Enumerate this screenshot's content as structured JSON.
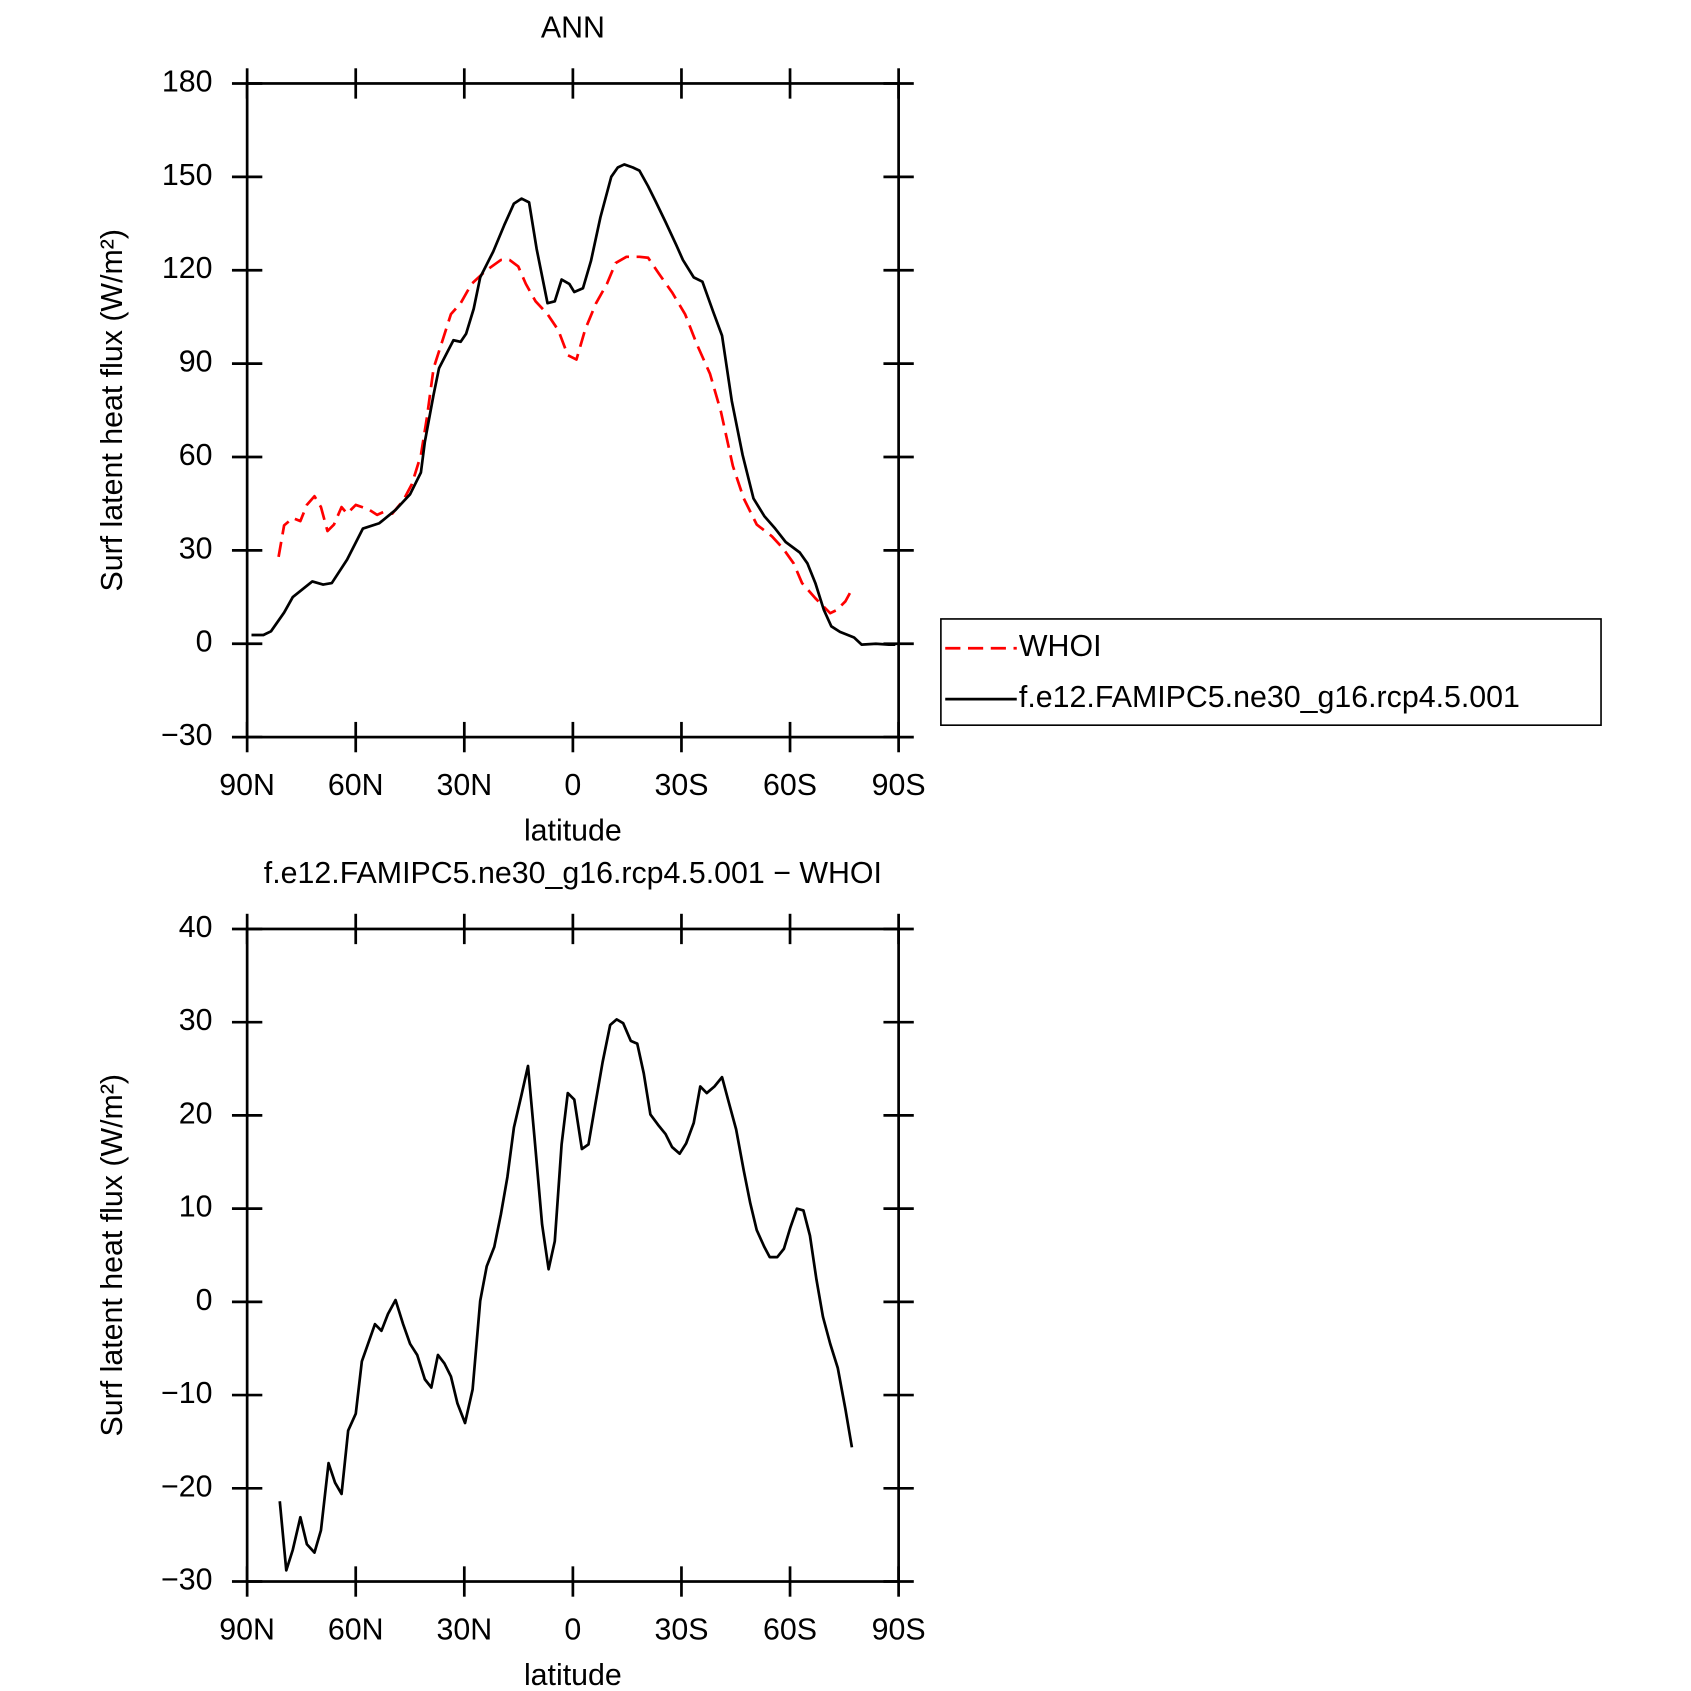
{
  "chart_data": [
    {
      "type": "line",
      "title": "ANN",
      "xlabel": "latitude",
      "ylabel": "Surf latent heat flux (W/m²)",
      "xlim": [
        90,
        -90
      ],
      "xticks": [
        {
          "value": 90,
          "label": "90N"
        },
        {
          "value": 60,
          "label": "60N"
        },
        {
          "value": 30,
          "label": "30N"
        },
        0,
        {
          "value": -30,
          "label": "30S"
        },
        {
          "value": -60,
          "label": "60S"
        },
        {
          "value": -90,
          "label": "90S"
        }
      ],
      "ylim": [
        -30,
        180
      ],
      "yticks": [
        {
          "value": -30,
          "label": "−30"
        },
        0,
        30,
        60,
        90,
        120,
        150,
        180
      ],
      "legend": "right",
      "series": [
        {
          "name": "WHOI",
          "color": "#ff0000",
          "dashed": true,
          "x": [
            81.3,
            79.8,
            77.4,
            75.3,
            73.5,
            71.4,
            69.6,
            67.8,
            66,
            63.9,
            62.4,
            60,
            56.5,
            54.1,
            52,
            49.9,
            46.9,
            44.5,
            42,
            40.3,
            38.5,
            36.1,
            33.7,
            31,
            28,
            24.1,
            19.9,
            17.5,
            15.1,
            13,
            10.3,
            7,
            4,
            1.4,
            -1,
            -3.4,
            -6.4,
            -9.4,
            -11.8,
            -14.8,
            -18.4,
            -20.8,
            -23.8,
            -27.4,
            -31,
            -34.3,
            -37.9,
            -40.9,
            -44.2,
            -47.2,
            -50.8,
            -55,
            -58,
            -61,
            -63.3,
            -67,
            -71.1,
            -72.9,
            -75.3,
            -77.4
          ],
          "values": [
            27.9,
            38,
            40.4,
            39.4,
            44.6,
            47.4,
            43.9,
            36.2,
            38.3,
            43.9,
            41.8,
            44.6,
            43.2,
            41.4,
            42.5,
            41.8,
            46,
            51.2,
            60.6,
            72.8,
            88.5,
            97.2,
            105.9,
            109.4,
            115.6,
            119.8,
            123.3,
            123.3,
            121.2,
            115.6,
            110,
            105.9,
            100.7,
            92.7,
            91.3,
            101,
            109.4,
            115.6,
            122.3,
            124.3,
            124.3,
            124,
            118.8,
            112.9,
            105.9,
            96.1,
            86.7,
            74.5,
            57.1,
            46.7,
            38.3,
            34.5,
            30.7,
            25.8,
            19.5,
            14.6,
            9.8,
            10.8,
            13.6,
            18.1
          ]
        },
        {
          "name": "f.e12.FAMIPC5.ne30_g16.rcp4.5.001",
          "color": "#000000",
          "dashed": false,
          "x": [
            88.8,
            85.5,
            83.4,
            79.8,
            77.4,
            72,
            69,
            66.6,
            62.4,
            58,
            53.5,
            49,
            45,
            42,
            40.9,
            38.5,
            37,
            33,
            31,
            29.5,
            27.4,
            25.6,
            22,
            19,
            16.3,
            14.2,
            12.1,
            10,
            7,
            5,
            3.1,
            1,
            -0.4,
            -2.8,
            -5,
            -7.6,
            -10.6,
            -12.4,
            -14.2,
            -16.6,
            -18.4,
            -20.8,
            -22.9,
            -25.6,
            -28.6,
            -30.4,
            -33.4,
            -35.8,
            -38.8,
            -41.2,
            -43.9,
            -46.9,
            -49.9,
            -52.9,
            -55.9,
            -58.8,
            -62.7,
            -64.8,
            -67,
            -69.3,
            -71.4,
            -73.8,
            -77.7,
            -79.8,
            -83.7,
            -87.3,
            -89.1
          ],
          "values": [
            2.8,
            2.8,
            4,
            10,
            15,
            20,
            19,
            19.5,
            27,
            37,
            38.7,
            43,
            48,
            55,
            64.8,
            80,
            88.5,
            97.5,
            97,
            99.6,
            107.6,
            117.7,
            126,
            134.4,
            141.4,
            143,
            141.8,
            126.8,
            109.4,
            110,
            117,
            115.6,
            113,
            114.2,
            123,
            137,
            150,
            153,
            154,
            153,
            152,
            147,
            142,
            135.5,
            128,
            123.3,
            117.7,
            116.3,
            106.6,
            99,
            78,
            60.6,
            46.7,
            41,
            37,
            32.7,
            29.3,
            25.8,
            19.5,
            11,
            5.6,
            3.8,
            2,
            -0.3,
            0,
            -0.3,
            -0.3
          ]
        }
      ]
    },
    {
      "type": "line",
      "title": "f.e12.FAMIPC5.ne30_g16.rcp4.5.001 − WHOI",
      "xlabel": "latitude",
      "ylabel": "Surf latent heat flux (W/m²)",
      "xlim": [
        90,
        -90
      ],
      "xticks": [
        {
          "value": 90,
          "label": "90N"
        },
        {
          "value": 60,
          "label": "60N"
        },
        {
          "value": 30,
          "label": "30N"
        },
        0,
        {
          "value": -30,
          "label": "30S"
        },
        {
          "value": -60,
          "label": "60S"
        },
        {
          "value": -90,
          "label": "90S"
        }
      ],
      "ylim": [
        -30,
        40
      ],
      "yticks": [
        {
          "value": -30,
          "label": "−30"
        },
        {
          "value": -20,
          "label": "−20"
        },
        {
          "value": -10,
          "label": "−10"
        },
        0,
        10,
        20,
        30,
        40
      ],
      "series": [
        {
          "color": "#000000",
          "dashed": false,
          "x": [
            81,
            79.2,
            77.4,
            75.3,
            73.5,
            71.4,
            69.6,
            67.5,
            65.7,
            63.9,
            62.1,
            60,
            58.3,
            54.7,
            52.9,
            51.1,
            49,
            46.9,
            45,
            43,
            40.9,
            39.1,
            37.3,
            35.5,
            33.7,
            31.9,
            29.8,
            27.7,
            25.6,
            23.8,
            21.7,
            19.9,
            18.1,
            16.3,
            14.2,
            12.4,
            10.6,
            8.5,
            6.7,
            5,
            3.1,
            1.4,
            -0.4,
            -2.5,
            -4.3,
            -6.1,
            -8.2,
            -10.3,
            -12.1,
            -13.9,
            -16,
            -17.8,
            -19.6,
            -21.4,
            -23.5,
            -25.6,
            -27.4,
            -29.5,
            -31.3,
            -33.4,
            -35.2,
            -37,
            -39.1,
            -41.2,
            -43,
            -45.1,
            -47.2,
            -49,
            -50.8,
            -52.9,
            -54.4,
            -56.5,
            -58.3,
            -60.1,
            -61.9,
            -63.7,
            -65.5,
            -67.3,
            -69.1,
            -71.1,
            -73.2,
            -75.3,
            -77.1
          ],
          "values": [
            -21.4,
            -28.8,
            -26.6,
            -23.1,
            -26,
            -26.9,
            -24.5,
            -17.3,
            -19.4,
            -20.6,
            -13.8,
            -12,
            -6.4,
            -2.4,
            -3.1,
            -1.3,
            0.2,
            -2.4,
            -4.5,
            -5.7,
            -8.3,
            -9.2,
            -5.7,
            -6.6,
            -8,
            -10.9,
            -13,
            -9.4,
            0.1,
            3.8,
            5.9,
            9.4,
            13.4,
            18.7,
            22.2,
            25.3,
            17.6,
            8.3,
            3.5,
            6.5,
            16.9,
            22.4,
            21.7,
            16.4,
            16.9,
            21,
            25.7,
            29.7,
            30.3,
            29.9,
            28,
            27.7,
            24.5,
            20.1,
            19,
            18,
            16.6,
            15.9,
            17,
            19.2,
            23.1,
            22.4,
            23.1,
            24.1,
            21.5,
            18.5,
            14.1,
            10.6,
            7.7,
            5.9,
            4.8,
            4.8,
            5.7,
            8,
            10,
            9.8,
            7.1,
            2.4,
            -1.6,
            -4.5,
            -7.1,
            -11.5,
            -15.6
          ]
        }
      ]
    }
  ]
}
